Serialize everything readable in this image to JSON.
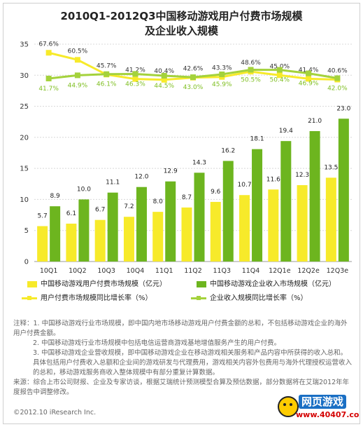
{
  "chart_data": {
    "type": "bar",
    "title_lines": [
      "2010Q1-2012Q3中国移动游戏用户付费市场规模",
      "及企业收入规模"
    ],
    "categories": [
      "10Q1",
      "10Q2",
      "10Q3",
      "10Q4",
      "11Q1",
      "11Q2",
      "11Q3",
      "11Q4",
      "12Q1e",
      "12Q2e",
      "12Q3e"
    ],
    "ylim": [
      0,
      35
    ],
    "yticks": [
      0,
      5,
      10,
      15,
      20,
      25,
      30,
      35
    ],
    "grid": true,
    "series": [
      {
        "name": "中国移动游戏用户付费市场规模（亿元）",
        "kind": "bar",
        "color": "#f7ea2a",
        "values": [
          5.7,
          6.1,
          6.7,
          7.2,
          8.0,
          8.7,
          9.6,
          10.7,
          11.6,
          12.3,
          13.5
        ]
      },
      {
        "name": "中国移动游戏企业收入市场规模（亿元）",
        "kind": "bar",
        "color": "#6db51f",
        "values": [
          8.9,
          10.0,
          11.1,
          12.0,
          12.9,
          14.3,
          16.2,
          18.1,
          19.4,
          21.0,
          23.0
        ]
      },
      {
        "name": "用户付费市场规模同比增长率（%）",
        "kind": "line",
        "color": "#f7ea2a",
        "values": [
          67.6,
          60.5,
          45.7,
          41.2,
          40.4,
          42.6,
          43.3,
          48.6,
          45.0,
          41.4,
          40.6
        ],
        "labels": [
          "67.6%",
          "60.5%",
          "45.7%",
          "41.2%",
          "40.4%",
          "42.6%",
          "43.3%",
          "48.6%",
          "45.0%",
          "41.4%",
          "40.6%"
        ]
      },
      {
        "name": "企业收入规模同比增长率（%）",
        "kind": "line",
        "color": "#a4d23c",
        "values": [
          41.7,
          44.9,
          46.1,
          46.3,
          44.5,
          43.0,
          45.9,
          50.5,
          50.4,
          46.9,
          42.0
        ],
        "labels": [
          "41.7%",
          "44.9%",
          "46.1%",
          "46.3%",
          "44.5%",
          "43.0%",
          "45.9%",
          "50.5%",
          "50.4%",
          "46.9%",
          "42.0%"
        ]
      }
    ],
    "legend_position": "bottom"
  },
  "notes": [
    "注释：1. 中国移动游戏行业市场规模，即中国内地市场移动游戏用户付费金额的总和，不包括移动游戏企业的海外用户付费金额。",
    "2. 中国移动游戏行业市场规模中包括电信运营商游戏基地增值服务产生的用户付费。",
    "3. 中国移动游戏企业营收规模，即中国移动游戏企业在移动游戏相关服务和产品内容中所获得的收入总和。具体包括用户付费收入总额和企业间的游戏研发与代理费用，游戏相关内容外包费用与海外代理授权运营收入的总和，移动游戏服务商收入整体规模中有部分重复计算数据。",
    "来源：综合上市公司财报、企业及专家访谈，根据艾瑞统计预测模型合算及预估数据，部分数据将在艾瑞2012年年度报告中调整修改。"
  ],
  "copyright": "©2012.10 iResearch Inc.",
  "logo": {
    "text": "网页游戏",
    "url": "www.40407.com"
  }
}
